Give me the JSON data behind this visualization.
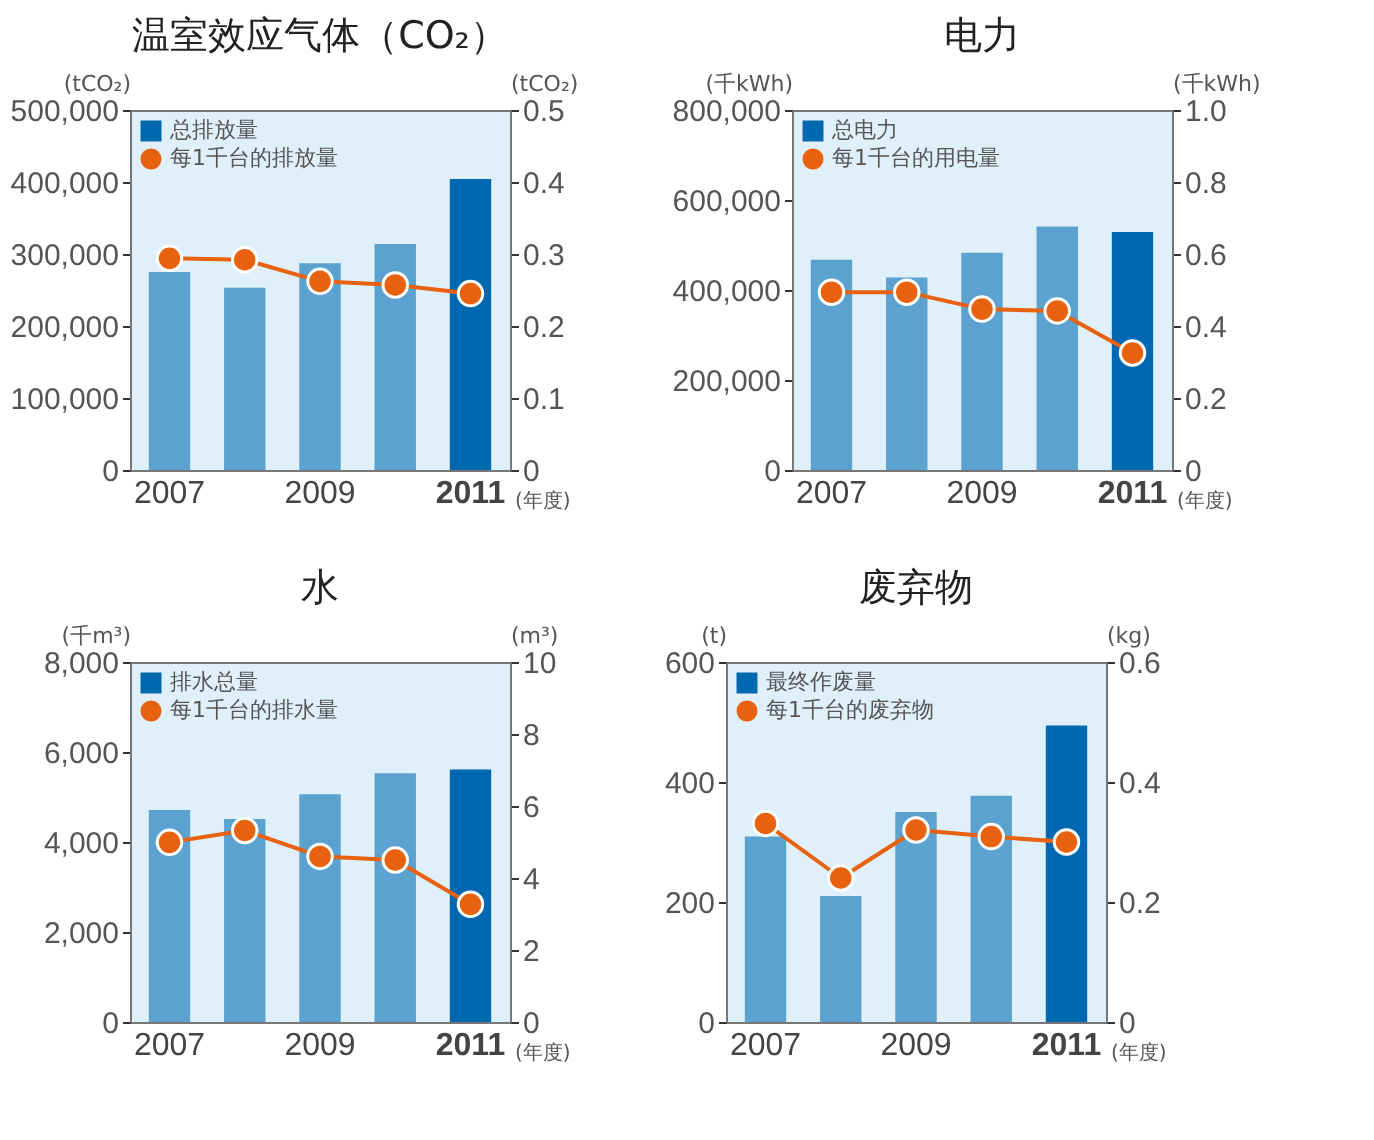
{
  "chart_data": [
    {
      "type": "bar",
      "title": "温室效应气体（CO₂）",
      "ylabel": "(tCO₂)",
      "y2label": "(tCO₂)",
      "xlabel": "(年度)",
      "categories": [
        "2007",
        null,
        "2009",
        null,
        "2011"
      ],
      "grid": false,
      "legend": "top left",
      "marker": "circle",
      "series": [
        {
          "name": "总排放量",
          "type": "bar",
          "colors": [
            "#5ba2d0",
            "#5ba2d0",
            "#5ba2d0",
            "#5ba2d0",
            "#0068b0"
          ],
          "values": [
            275000,
            253000,
            287000,
            314000,
            404000
          ]
        },
        {
          "name": "每1千台的排放量",
          "type": "line",
          "axis": "y2",
          "color": "#e8610e",
          "values": [
            0.294,
            0.292,
            0.262,
            0.257,
            0.245
          ]
        }
      ],
      "ylim": [
        0,
        500000
      ],
      "yticks": [
        0,
        {
          "value": 100000,
          "label": "100,000"
        },
        {
          "value": 200000,
          "label": "200,000"
        },
        {
          "value": 300000,
          "label": "300,000"
        },
        {
          "value": 400000,
          "label": "400,000"
        },
        {
          "value": 500000,
          "label": "500,000"
        }
      ],
      "y2lim": [
        0,
        0.5
      ],
      "y2ticks": [
        0,
        0.1,
        0.2,
        0.3,
        0.4,
        0.5
      ]
    },
    {
      "type": "bar",
      "title": "电力",
      "ylabel": "(千kWh)",
      "y2label": "(千kWh)",
      "xlabel": "(年度)",
      "categories": [
        "2007",
        null,
        "2009",
        null,
        "2011"
      ],
      "grid": false,
      "legend": "top left",
      "marker": "circle",
      "series": [
        {
          "name": "总电力",
          "type": "bar",
          "colors": [
            "#5ba2d0",
            "#5ba2d0",
            "#5ba2d0",
            "#5ba2d0",
            "#0068b0"
          ],
          "values": [
            467000,
            428000,
            483000,
            541000,
            529000
          ]
        },
        {
          "name": "每1千台的用电量",
          "type": "line",
          "axis": "y2",
          "color": "#e8610e",
          "values": [
            0.494,
            0.494,
            0.447,
            0.442,
            0.325
          ]
        }
      ],
      "ylim": [
        0,
        800000
      ],
      "yticks": [
        0,
        {
          "value": 200000,
          "label": "200,000"
        },
        {
          "value": 400000,
          "label": "400,000"
        },
        {
          "value": 600000,
          "label": "600,000"
        },
        {
          "value": 800000,
          "label": "800,000"
        }
      ],
      "y2lim": [
        0,
        1
      ],
      "y2ticks": [
        0,
        0.2,
        0.4,
        0.6,
        0.8,
        {
          "value": 1,
          "label": "1.0"
        }
      ]
    },
    {
      "type": "bar",
      "title": "水",
      "ylabel": "(千m³)",
      "y2label": "(m³)",
      "xlabel": "(年度)",
      "categories": [
        "2007",
        null,
        "2009",
        null,
        "2011"
      ],
      "grid": false,
      "legend": "top left",
      "marker": "circle",
      "series": [
        {
          "name": "排水总量",
          "type": "bar",
          "colors": [
            "#5ba2d0",
            "#5ba2d0",
            "#5ba2d0",
            "#5ba2d0",
            "#0068b0"
          ],
          "values": [
            4710,
            4510,
            5060,
            5530,
            5610
          ]
        },
        {
          "name": "每1千台的排水量",
          "type": "line",
          "axis": "y2",
          "color": "#e8610e",
          "values": [
            4.99,
            5.32,
            4.6,
            4.5,
            3.27
          ]
        }
      ],
      "ylim": [
        0,
        8000
      ],
      "yticks": [
        0,
        {
          "value": 2000,
          "label": "2,000"
        },
        {
          "value": 4000,
          "label": "4,000"
        },
        {
          "value": 6000,
          "label": "6,000"
        },
        {
          "value": 8000,
          "label": "8,000"
        }
      ],
      "y2lim": [
        0,
        10
      ],
      "y2ticks": [
        0,
        2,
        4,
        6,
        8,
        10
      ]
    },
    {
      "type": "bar",
      "title": "废弃物",
      "ylabel": "(t)",
      "y2label": "(kg)",
      "xlabel": "(年度)",
      "categories": [
        "2007",
        null,
        "2009",
        null,
        "2011"
      ],
      "grid": false,
      "legend": "top left",
      "marker": "circle",
      "series": [
        {
          "name": "最终作废量",
          "type": "bar",
          "colors": [
            "#5ba2d0",
            "#5ba2d0",
            "#5ba2d0",
            "#5ba2d0",
            "#0068b0"
          ],
          "values": [
            309,
            210,
            350,
            377,
            494
          ]
        },
        {
          "name": "每1千台的废弃物",
          "type": "line",
          "axis": "y2",
          "color": "#e8610e",
          "values": [
            0.331,
            0.24,
            0.32,
            0.309,
            0.3
          ]
        }
      ],
      "ylim": [
        0,
        600
      ],
      "yticks": [
        0,
        200,
        400,
        600
      ],
      "y2lim": [
        0,
        0.6
      ],
      "y2ticks": [
        0,
        0.2,
        0.4,
        0.6
      ]
    }
  ]
}
